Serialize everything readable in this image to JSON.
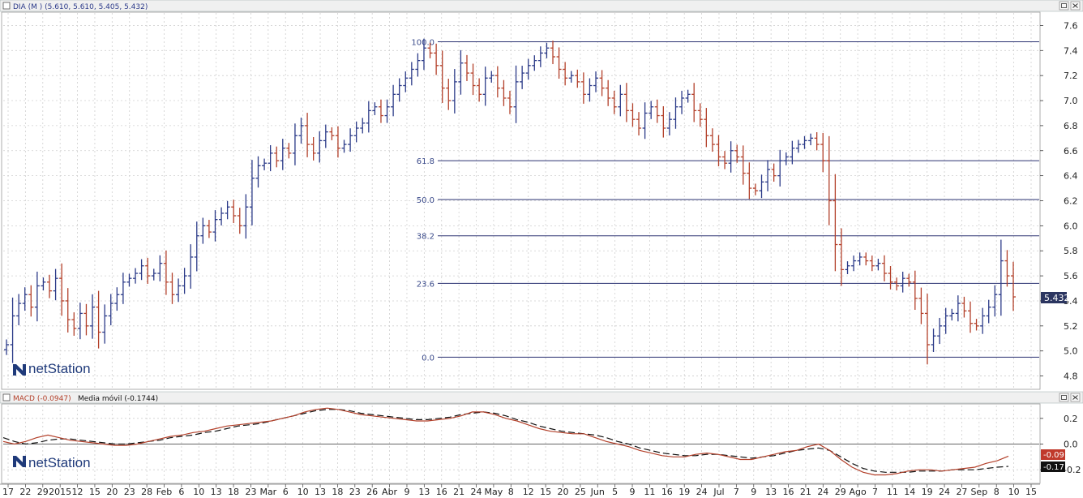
{
  "price_panel": {
    "title": "DIA (M ) (5.610, 5.610, 5.405, 5.432)",
    "last_price_label": "5.432",
    "watermark": "netStation",
    "colors": {
      "up": "#2b3a88",
      "down": "#b3402a",
      "fib_line": "#2a3170",
      "grid": "#cfcfcf"
    }
  },
  "macd_panel": {
    "title_macd": "MACD (-0.0947)",
    "title_signal": "Media móvil (-0.1744)",
    "macd_label": "-0.09",
    "signal_label": "-0.17",
    "watermark": "netStation",
    "colors": {
      "macd": "#b3402a",
      "signal": "#111111",
      "macd_label_bg": "#c0392b",
      "signal_label_bg": "#111111"
    }
  },
  "x_axis_labels": [
    "17",
    "22",
    "29",
    "2015",
    "12",
    "15",
    "20",
    "23",
    "28",
    "Feb",
    "6",
    "10",
    "13",
    "18",
    "23",
    "Mar",
    "6",
    "10",
    "13",
    "18",
    "23",
    "26",
    "Abr",
    "9",
    "13",
    "16",
    "21",
    "24",
    "May",
    "8",
    "12",
    "15",
    "20",
    "25",
    "Jun",
    "5",
    "9",
    "11",
    "16",
    "19",
    "24",
    "Jul",
    "7",
    "9",
    "13",
    "16",
    "21",
    "24",
    "29",
    "Ago",
    "7",
    "11",
    "14",
    "19",
    "24",
    "27",
    "Sep",
    "8",
    "10",
    "15"
  ],
  "chart_data": {
    "type": "bar",
    "subtype": "ohlc_with_fibonacci_and_macd",
    "price_axis": {
      "ylim": [
        4.7,
        7.7
      ],
      "ticks": [
        "4.8",
        "5.0",
        "5.2",
        "5.4",
        "5.6",
        "5.8",
        "6.0",
        "6.2",
        "6.4",
        "6.6",
        "6.8",
        "7.0",
        "7.2",
        "7.4",
        "7.6"
      ]
    },
    "macd_axis": {
      "ylim": [
        -0.3,
        0.3
      ],
      "ticks": [
        "-0.2",
        "0.0",
        "0.2"
      ]
    },
    "fibonacci_levels": [
      {
        "label": "100.0",
        "value": 7.47
      },
      {
        "label": "61.8",
        "value": 6.52
      },
      {
        "label": "50.0",
        "value": 6.21
      },
      {
        "label": "38.2",
        "value": 5.92
      },
      {
        "label": "23.6",
        "value": 5.54
      },
      {
        "label": "0.0",
        "value": 4.95
      }
    ],
    "close_series": [
      5.05,
      5.28,
      5.38,
      5.45,
      5.35,
      5.52,
      5.55,
      5.48,
      5.58,
      5.4,
      5.25,
      5.18,
      5.3,
      5.2,
      5.35,
      5.15,
      5.28,
      5.38,
      5.45,
      5.55,
      5.58,
      5.62,
      5.68,
      5.6,
      5.62,
      5.7,
      5.55,
      5.45,
      5.52,
      5.6,
      5.75,
      5.92,
      6.0,
      5.95,
      6.05,
      6.1,
      6.15,
      6.08,
      6.0,
      6.15,
      6.38,
      6.48,
      6.5,
      6.58,
      6.52,
      6.62,
      6.58,
      6.72,
      6.8,
      6.65,
      6.58,
      6.68,
      6.75,
      6.72,
      6.62,
      6.65,
      6.72,
      6.78,
      6.82,
      6.92,
      6.95,
      6.88,
      6.95,
      7.05,
      7.12,
      7.18,
      7.25,
      7.32,
      7.42,
      7.38,
      7.28,
      7.1,
      7.0,
      7.15,
      7.3,
      7.22,
      7.12,
      7.05,
      7.18,
      7.2,
      7.1,
      7.02,
      6.95,
      7.15,
      7.22,
      7.28,
      7.32,
      7.38,
      7.42,
      7.35,
      7.25,
      7.18,
      7.2,
      7.15,
      7.05,
      7.12,
      7.18,
      7.1,
      7.02,
      6.95,
      7.05,
      6.92,
      6.85,
      6.78,
      6.9,
      6.95,
      6.88,
      6.78,
      6.85,
      6.95,
      7.02,
      7.05,
      6.92,
      6.85,
      6.72,
      6.65,
      6.55,
      6.5,
      6.6,
      6.55,
      6.42,
      6.3,
      6.28,
      6.35,
      6.45,
      6.4,
      6.52,
      6.55,
      6.62,
      6.65,
      6.68,
      6.7,
      6.65,
      6.52,
      6.2,
      5.85,
      5.65,
      5.68,
      5.72,
      5.75,
      5.72,
      5.68,
      5.7,
      5.62,
      5.55,
      5.52,
      5.58,
      5.55,
      5.42,
      5.3,
      5.05,
      5.12,
      5.2,
      5.28,
      5.3,
      5.38,
      5.32,
      5.22,
      5.2,
      5.28,
      5.35,
      5.45,
      5.72,
      5.6,
      5.432
    ],
    "macd_series": [
      0.02,
      0.0,
      0.02,
      0.05,
      0.07,
      0.05,
      0.03,
      0.02,
      0.01,
      0.0,
      -0.01,
      -0.01,
      0.0,
      0.02,
      0.04,
      0.06,
      0.07,
      0.09,
      0.1,
      0.12,
      0.14,
      0.15,
      0.16,
      0.17,
      0.18,
      0.2,
      0.22,
      0.25,
      0.27,
      0.28,
      0.27,
      0.25,
      0.23,
      0.22,
      0.21,
      0.2,
      0.19,
      0.18,
      0.18,
      0.19,
      0.2,
      0.22,
      0.25,
      0.25,
      0.23,
      0.2,
      0.18,
      0.15,
      0.12,
      0.1,
      0.09,
      0.08,
      0.08,
      0.05,
      0.02,
      0.0,
      -0.02,
      -0.05,
      -0.07,
      -0.09,
      -0.1,
      -0.1,
      -0.08,
      -0.07,
      -0.08,
      -0.1,
      -0.12,
      -0.12,
      -0.1,
      -0.08,
      -0.06,
      -0.05,
      -0.02,
      0.0,
      -0.05,
      -0.12,
      -0.18,
      -0.22,
      -0.24,
      -0.24,
      -0.23,
      -0.21,
      -0.2,
      -0.2,
      -0.21,
      -0.2,
      -0.19,
      -0.18,
      -0.15,
      -0.13,
      -0.094
    ],
    "signal_series": [
      0.05,
      0.02,
      0.0,
      0.01,
      0.03,
      0.04,
      0.04,
      0.03,
      0.02,
      0.01,
      0.0,
      0.0,
      0.01,
      0.02,
      0.03,
      0.05,
      0.06,
      0.07,
      0.09,
      0.1,
      0.12,
      0.14,
      0.15,
      0.16,
      0.18,
      0.2,
      0.22,
      0.24,
      0.26,
      0.27,
      0.27,
      0.26,
      0.24,
      0.23,
      0.22,
      0.21,
      0.2,
      0.19,
      0.19,
      0.2,
      0.21,
      0.23,
      0.24,
      0.25,
      0.24,
      0.22,
      0.19,
      0.17,
      0.14,
      0.12,
      0.1,
      0.09,
      0.08,
      0.07,
      0.05,
      0.02,
      0.0,
      -0.03,
      -0.05,
      -0.07,
      -0.08,
      -0.09,
      -0.09,
      -0.08,
      -0.08,
      -0.09,
      -0.1,
      -0.11,
      -0.1,
      -0.09,
      -0.07,
      -0.05,
      -0.04,
      -0.03,
      -0.05,
      -0.1,
      -0.15,
      -0.19,
      -0.21,
      -0.22,
      -0.22,
      -0.22,
      -0.21,
      -0.21,
      -0.21,
      -0.2,
      -0.2,
      -0.2,
      -0.19,
      -0.18,
      -0.174
    ]
  }
}
